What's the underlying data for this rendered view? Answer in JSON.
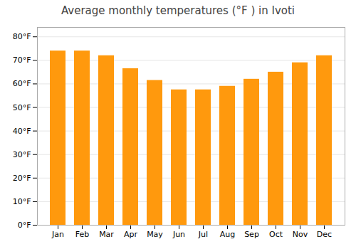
{
  "chart_data": {
    "type": "bar",
    "title": "Average monthly temperatures (°F ) in Ivoti",
    "categories": [
      "Jan",
      "Feb",
      "Mar",
      "Apr",
      "May",
      "Jun",
      "Jul",
      "Aug",
      "Sep",
      "Oct",
      "Nov",
      "Dec"
    ],
    "values": [
      74,
      74,
      72,
      66.5,
      61.5,
      57.5,
      57.5,
      59,
      62,
      65,
      69,
      72
    ],
    "color": "#FF990D",
    "ylim": [
      0,
      84
    ],
    "yticks": [
      {
        "value": 0,
        "label": "0°F"
      },
      {
        "value": 10,
        "label": "10°F"
      },
      {
        "value": 20,
        "label": "20°F"
      },
      {
        "value": 30,
        "label": "30°F"
      },
      {
        "value": 40,
        "label": "40°F"
      },
      {
        "value": 50,
        "label": "50°F"
      },
      {
        "value": 60,
        "label": "60°F"
      },
      {
        "value": 70,
        "label": "70°F"
      },
      {
        "value": 80,
        "label": "80°F"
      }
    ],
    "grid": true
  }
}
